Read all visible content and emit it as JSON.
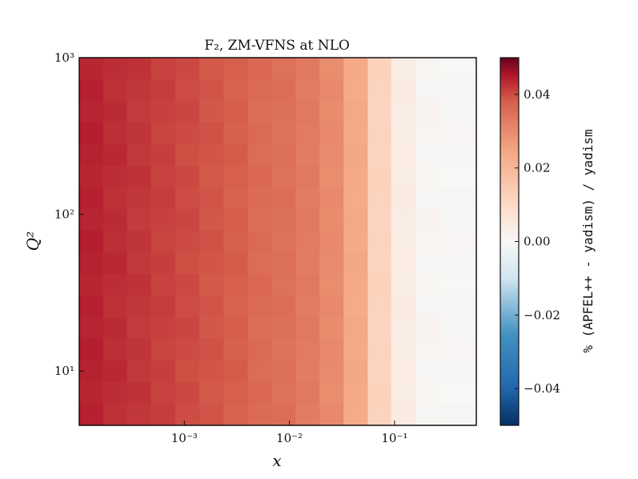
{
  "chart_data": {
    "type": "heatmap",
    "title": "F₂, ZM-VFNS at NLO",
    "xlabel": "x",
    "ylabel": "Q²",
    "x_scale": "log",
    "y_scale": "log",
    "xlim": [
      0.0001,
      0.6
    ],
    "ylim": [
      4.5,
      1000
    ],
    "x_ticks": [
      {
        "value": 0.001,
        "label": "10⁻³"
      },
      {
        "value": 0.01,
        "label": "10⁻²"
      },
      {
        "value": 0.1,
        "label": "10⁻¹"
      }
    ],
    "y_ticks": [
      {
        "value": 10,
        "label": "10¹"
      },
      {
        "value": 100,
        "label": "10²"
      },
      {
        "value": 1000,
        "label": "10³"
      }
    ],
    "colorbar": {
      "label": "% (APFEL++ - yadism) / yadism",
      "colormap": "RdBu_r",
      "range": [
        -0.05,
        0.05
      ],
      "ticks": [
        {
          "value": -0.04,
          "label": "−0.04"
        },
        {
          "value": -0.02,
          "label": "−0.02"
        },
        {
          "value": 0.0,
          "label": "0.00"
        },
        {
          "value": 0.02,
          "label": "0.02"
        },
        {
          "value": 0.04,
          "label": "0.04"
        }
      ]
    },
    "x_columns": [
      0.00013,
      0.00022,
      0.00037,
      0.00063,
      0.00107,
      0.0018,
      0.0031,
      0.0052,
      0.0088,
      0.015,
      0.025,
      0.043,
      0.072,
      0.12,
      0.21,
      0.35
    ],
    "column_values": [
      0.044,
      0.043,
      0.042,
      0.041,
      0.04,
      0.039,
      0.038,
      0.036,
      0.035,
      0.033,
      0.03,
      0.024,
      0.012,
      0.004,
      0.001,
      0.0005
    ],
    "q2_rows": 17
  }
}
